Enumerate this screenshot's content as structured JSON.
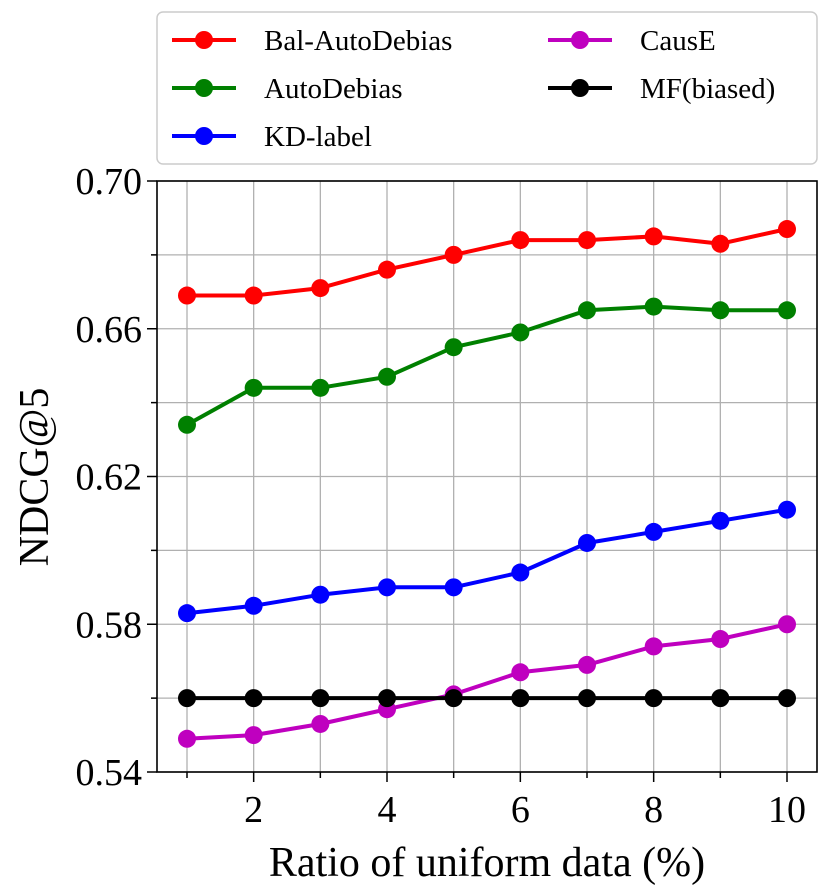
{
  "chart_data": {
    "type": "line",
    "title": "",
    "xlabel": "Ratio of uniform data (%)",
    "ylabel": "NDCG@5",
    "x": [
      1,
      2,
      3,
      4,
      5,
      6,
      7,
      8,
      9,
      10
    ],
    "xlim": [
      0.55,
      10.45
    ],
    "ylim": [
      0.54,
      0.7
    ],
    "xticks": [
      2,
      4,
      6,
      8,
      10
    ],
    "xtick_labels": [
      "2",
      "4",
      "6",
      "8",
      "10"
    ],
    "xgrid": [
      1,
      2,
      3,
      4,
      5,
      6,
      7,
      8,
      9,
      10
    ],
    "yticks": [
      0.54,
      0.58,
      0.62,
      0.66,
      0.7
    ],
    "ytick_labels": [
      "0.54",
      "0.58",
      "0.62",
      "0.66",
      "0.70"
    ],
    "ygrid": [
      0.54,
      0.56,
      0.58,
      0.6,
      0.62,
      0.64,
      0.66,
      0.68,
      0.7
    ],
    "grid": true,
    "legend_position": "top",
    "series": [
      {
        "name": "Bal-AutoDebias",
        "color": "#ff0000",
        "values": [
          0.669,
          0.669,
          0.671,
          0.676,
          0.68,
          0.684,
          0.684,
          0.685,
          0.683,
          0.687
        ]
      },
      {
        "name": "AutoDebias",
        "color": "#008000",
        "values": [
          0.634,
          0.644,
          0.644,
          0.647,
          0.655,
          0.659,
          0.665,
          0.666,
          0.665,
          0.665
        ]
      },
      {
        "name": "KD-label",
        "color": "#0000ff",
        "values": [
          0.583,
          0.585,
          0.588,
          0.59,
          0.59,
          0.594,
          0.602,
          0.605,
          0.608,
          0.611
        ]
      },
      {
        "name": "CausE",
        "color": "#bf00bf",
        "values": [
          0.549,
          0.55,
          0.553,
          0.557,
          0.561,
          0.567,
          0.569,
          0.574,
          0.576,
          0.58
        ]
      },
      {
        "name": "MF(biased)",
        "color": "#000000",
        "values": [
          0.56,
          0.56,
          0.56,
          0.56,
          0.56,
          0.56,
          0.56,
          0.56,
          0.56,
          0.56
        ]
      }
    ]
  }
}
